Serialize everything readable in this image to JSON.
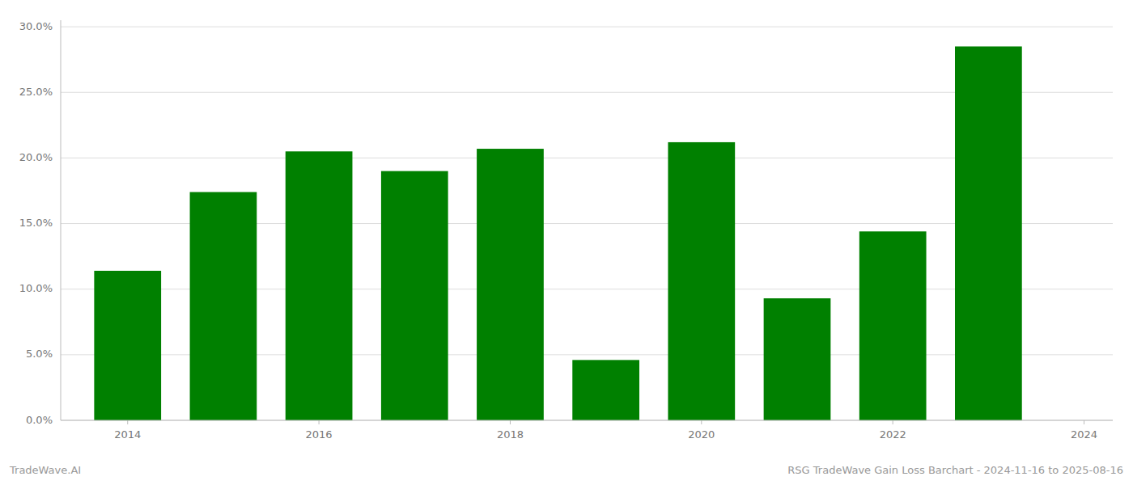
{
  "chart_data": {
    "type": "bar",
    "title": "RSG TradeWave Gain Loss Barchart - 2024-11-16 to 2025-08-16",
    "annotations": [
      "TradeWave.AI"
    ],
    "x": [
      2014,
      2015,
      2016,
      2017,
      2018,
      2019,
      2020,
      2021,
      2022,
      2023
    ],
    "values": [
      0.114,
      0.174,
      0.205,
      0.19,
      0.207,
      0.046,
      0.212,
      0.093,
      0.144,
      0.285
    ],
    "color": "#008000",
    "xlim": [
      2013.3,
      2024.3
    ],
    "xticks": [
      2014,
      2016,
      2018,
      2020,
      2022,
      2024
    ],
    "ylim": [
      0,
      0.305
    ],
    "yticks": [
      {
        "value": 0.0,
        "label": "0.0%"
      },
      {
        "value": 0.05,
        "label": "5.0%"
      },
      {
        "value": 0.1,
        "label": "10.0%"
      },
      {
        "value": 0.15,
        "label": "15.0%"
      },
      {
        "value": 0.2,
        "label": "20.0%"
      },
      {
        "value": 0.25,
        "label": "25.0%"
      },
      {
        "value": 0.3,
        "label": "30.0%"
      }
    ],
    "grid": true
  }
}
